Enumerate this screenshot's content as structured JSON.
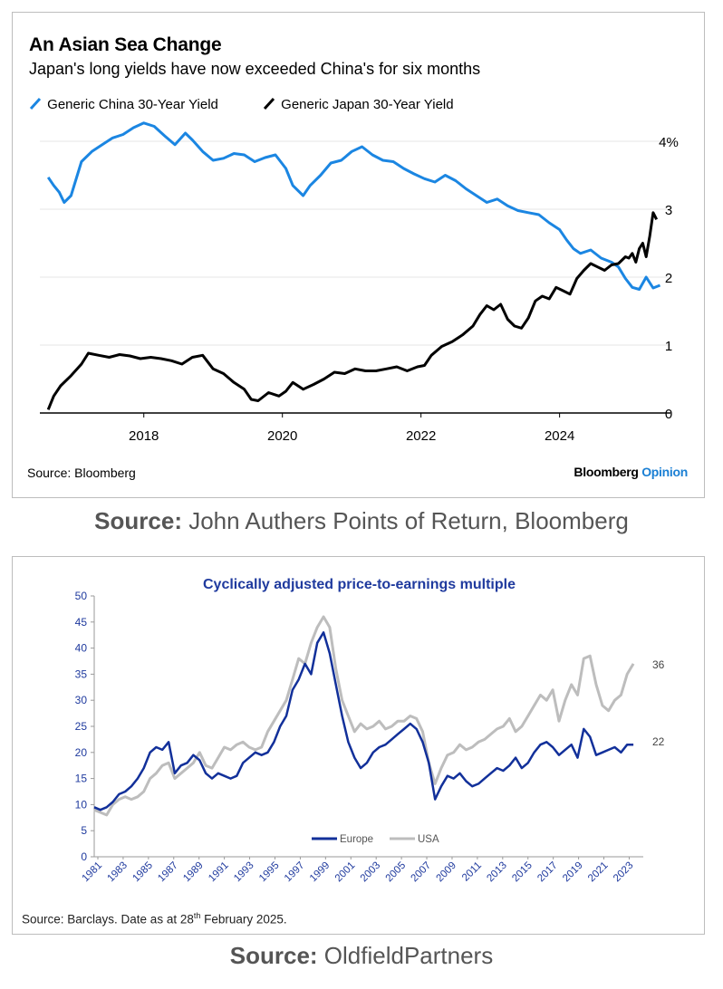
{
  "chart_data": [
    {
      "type": "line",
      "title": "An Asian Sea Change",
      "subtitle": "Japan's long yields have now exceeded China's for six months",
      "xlabel": "",
      "ylabel": "",
      "xlim": [
        2016.5,
        2025.6
      ],
      "ylim": [
        0,
        4
      ],
      "x_ticks": [
        2018,
        2020,
        2022,
        2024
      ],
      "x_tick_labels": [
        "2018",
        "2020",
        "2022",
        "2024"
      ],
      "y_ticks": [
        0,
        1,
        2,
        3,
        4
      ],
      "y_tick_labels": [
        "0",
        "1",
        "2",
        "3",
        "4%"
      ],
      "grid": true,
      "legend_position": "top-left",
      "series": [
        {
          "name": "Generic China 30-Year Yield",
          "color": "#1b86e2",
          "x": [
            2016.62,
            2016.7,
            2016.78,
            2016.85,
            2016.95,
            2017.1,
            2017.25,
            2017.4,
            2017.55,
            2017.7,
            2017.85,
            2018.0,
            2018.15,
            2018.3,
            2018.45,
            2018.6,
            2018.7,
            2018.85,
            2019.0,
            2019.15,
            2019.3,
            2019.45,
            2019.6,
            2019.75,
            2019.9,
            2020.05,
            2020.15,
            2020.3,
            2020.4,
            2020.55,
            2020.7,
            2020.85,
            2021.0,
            2021.15,
            2021.3,
            2021.45,
            2021.6,
            2021.75,
            2021.9,
            2022.05,
            2022.2,
            2022.35,
            2022.5,
            2022.65,
            2022.8,
            2022.95,
            2023.1,
            2023.25,
            2023.4,
            2023.55,
            2023.7,
            2023.85,
            2024.0,
            2024.1,
            2024.2,
            2024.3,
            2024.45,
            2024.6,
            2024.75,
            2024.85,
            2024.95,
            2025.05,
            2025.15,
            2025.25,
            2025.35,
            2025.45
          ],
          "values": [
            3.47,
            3.35,
            3.25,
            3.1,
            3.2,
            3.7,
            3.85,
            3.95,
            4.05,
            4.1,
            4.2,
            4.27,
            4.22,
            4.08,
            3.95,
            4.12,
            4.02,
            3.85,
            3.72,
            3.75,
            3.82,
            3.8,
            3.7,
            3.76,
            3.8,
            3.6,
            3.35,
            3.2,
            3.35,
            3.5,
            3.68,
            3.72,
            3.85,
            3.92,
            3.8,
            3.72,
            3.7,
            3.6,
            3.52,
            3.45,
            3.4,
            3.5,
            3.42,
            3.3,
            3.2,
            3.1,
            3.15,
            3.05,
            2.98,
            2.95,
            2.92,
            2.8,
            2.7,
            2.55,
            2.42,
            2.35,
            2.4,
            2.28,
            2.22,
            2.15,
            1.98,
            1.85,
            1.82,
            2.0,
            1.84,
            1.88
          ]
        },
        {
          "name": "Generic Japan 30-Year Yield",
          "color": "#000000",
          "x": [
            2016.62,
            2016.7,
            2016.8,
            2016.95,
            2017.1,
            2017.2,
            2017.35,
            2017.5,
            2017.65,
            2017.8,
            2017.95,
            2018.1,
            2018.25,
            2018.4,
            2018.55,
            2018.7,
            2018.85,
            2019.0,
            2019.15,
            2019.3,
            2019.45,
            2019.55,
            2019.65,
            2019.8,
            2019.95,
            2020.05,
            2020.15,
            2020.3,
            2020.45,
            2020.6,
            2020.75,
            2020.9,
            2021.05,
            2021.2,
            2021.35,
            2021.5,
            2021.65,
            2021.8,
            2021.95,
            2022.05,
            2022.15,
            2022.3,
            2022.45,
            2022.6,
            2022.75,
            2022.85,
            2022.95,
            2023.05,
            2023.15,
            2023.25,
            2023.35,
            2023.45,
            2023.55,
            2023.65,
            2023.75,
            2023.85,
            2023.95,
            2024.05,
            2024.15,
            2024.25,
            2024.35,
            2024.45,
            2024.55,
            2024.65,
            2024.75,
            2024.85,
            2024.95,
            2025.0,
            2025.05,
            2025.1,
            2025.15,
            2025.2,
            2025.25,
            2025.3,
            2025.35,
            2025.4
          ],
          "values": [
            0.05,
            0.25,
            0.4,
            0.55,
            0.72,
            0.88,
            0.85,
            0.82,
            0.86,
            0.84,
            0.8,
            0.82,
            0.8,
            0.77,
            0.72,
            0.82,
            0.85,
            0.65,
            0.58,
            0.45,
            0.35,
            0.2,
            0.18,
            0.3,
            0.25,
            0.32,
            0.45,
            0.35,
            0.42,
            0.5,
            0.6,
            0.58,
            0.65,
            0.62,
            0.62,
            0.65,
            0.68,
            0.62,
            0.68,
            0.7,
            0.85,
            0.98,
            1.05,
            1.15,
            1.28,
            1.45,
            1.58,
            1.52,
            1.6,
            1.38,
            1.28,
            1.25,
            1.4,
            1.65,
            1.72,
            1.68,
            1.85,
            1.8,
            1.75,
            1.98,
            2.1,
            2.2,
            2.15,
            2.1,
            2.18,
            2.2,
            2.3,
            2.28,
            2.35,
            2.22,
            2.42,
            2.5,
            2.3,
            2.6,
            2.95,
            2.85
          ]
        }
      ],
      "source": "Source: Bloomberg",
      "brand": "Bloomberg",
      "brand_accent": "Opinion"
    },
    {
      "type": "line",
      "title": "Cyclically adjusted price-to-earnings multiple",
      "xlabel": "",
      "ylabel": "",
      "xlim": [
        1981,
        2025.3
      ],
      "ylim": [
        0,
        50
      ],
      "x_tick_labels": [
        "1981",
        "1983",
        "1985",
        "1987",
        "1989",
        "1991",
        "1993",
        "1995",
        "1997",
        "1999",
        "2001",
        "2003",
        "2005",
        "2007",
        "2009",
        "2011",
        "2013",
        "2015",
        "2017",
        "2019",
        "2021",
        "2023"
      ],
      "y_ticks": [
        0,
        5,
        10,
        15,
        20,
        25,
        30,
        35,
        40,
        45,
        50
      ],
      "grid": false,
      "legend_position": "bottom-center",
      "end_labels": [
        "36",
        "22"
      ],
      "series": [
        {
          "name": "Europe",
          "color": "#12309a",
          "x": [
            1981.0,
            1981.5,
            1982.0,
            1982.5,
            1983.0,
            1983.5,
            1984.0,
            1984.5,
            1985.0,
            1985.5,
            1986.0,
            1986.5,
            1987.0,
            1987.5,
            1988.0,
            1988.5,
            1989.0,
            1989.5,
            1990.0,
            1990.5,
            1991.0,
            1991.5,
            1992.0,
            1992.5,
            1993.0,
            1993.5,
            1994.0,
            1994.5,
            1995.0,
            1995.5,
            1996.0,
            1996.5,
            1997.0,
            1997.5,
            1998.0,
            1998.5,
            1999.0,
            1999.5,
            2000.0,
            2000.5,
            2001.0,
            2001.5,
            2002.0,
            2002.5,
            2003.0,
            2003.5,
            2004.0,
            2004.5,
            2005.0,
            2005.5,
            2006.0,
            2006.5,
            2007.0,
            2007.5,
            2008.0,
            2008.5,
            2009.0,
            2009.5,
            2010.0,
            2010.5,
            2011.0,
            2011.5,
            2012.0,
            2012.5,
            2013.0,
            2013.5,
            2014.0,
            2014.5,
            2015.0,
            2015.5,
            2016.0,
            2016.5,
            2017.0,
            2017.5,
            2018.0,
            2018.5,
            2019.0,
            2019.5,
            2020.0,
            2020.5,
            2021.0,
            2021.5,
            2022.0,
            2022.5,
            2023.0,
            2023.5,
            2024.0,
            2024.5
          ],
          "values": [
            9.5,
            9,
            9.5,
            10.5,
            12,
            12.5,
            13.5,
            15,
            17,
            20,
            21,
            20.5,
            22,
            16,
            17.5,
            18,
            19.5,
            18.5,
            16,
            15,
            16,
            15.5,
            15,
            15.5,
            18,
            19,
            20,
            19.5,
            20,
            22,
            25,
            27,
            32,
            34,
            37,
            35,
            41,
            43,
            39,
            33,
            27,
            22,
            19,
            17,
            18,
            20,
            21,
            21.5,
            22.5,
            23.5,
            24.5,
            25.5,
            24.5,
            22,
            18,
            11,
            13.5,
            15.5,
            15,
            16,
            14.5,
            13.5,
            14,
            15,
            16,
            17,
            16.5,
            17.5,
            19,
            17,
            18,
            20,
            21.5,
            22,
            21,
            19.5,
            20.5,
            21.5,
            19,
            24.5,
            23,
            19.5,
            20,
            20.5,
            21,
            20,
            21.5,
            21.5
          ]
        },
        {
          "name": "USA",
          "color": "#bdbdbd",
          "x": [
            1981.0,
            1981.5,
            1982.0,
            1982.5,
            1983.0,
            1983.5,
            1984.0,
            1984.5,
            1985.0,
            1985.5,
            1986.0,
            1986.5,
            1987.0,
            1987.5,
            1988.0,
            1988.5,
            1989.0,
            1989.5,
            1990.0,
            1990.5,
            1991.0,
            1991.5,
            1992.0,
            1992.5,
            1993.0,
            1993.5,
            1994.0,
            1994.5,
            1995.0,
            1995.5,
            1996.0,
            1996.5,
            1997.0,
            1997.5,
            1998.0,
            1998.5,
            1999.0,
            1999.5,
            2000.0,
            2000.5,
            2001.0,
            2001.5,
            2002.0,
            2002.5,
            2003.0,
            2003.5,
            2004.0,
            2004.5,
            2005.0,
            2005.5,
            2006.0,
            2006.5,
            2007.0,
            2007.5,
            2008.0,
            2008.5,
            2009.0,
            2009.5,
            2010.0,
            2010.5,
            2011.0,
            2011.5,
            2012.0,
            2012.5,
            2013.0,
            2013.5,
            2014.0,
            2014.5,
            2015.0,
            2015.5,
            2016.0,
            2016.5,
            2017.0,
            2017.5,
            2018.0,
            2018.5,
            2019.0,
            2019.5,
            2020.0,
            2020.5,
            2021.0,
            2021.5,
            2022.0,
            2022.5,
            2023.0,
            2023.5,
            2024.0,
            2024.5
          ],
          "values": [
            9,
            8.5,
            8,
            10,
            11,
            11.5,
            11,
            11.5,
            12.5,
            15,
            16,
            17.5,
            18,
            15,
            16,
            17,
            18,
            20,
            17.5,
            17,
            19,
            21,
            20.5,
            21.5,
            22,
            21,
            20.5,
            21,
            24,
            26,
            28,
            30,
            34,
            38,
            37,
            41,
            44,
            46,
            44,
            36,
            30,
            27,
            24,
            25.5,
            24.5,
            25,
            26,
            24.5,
            25,
            26,
            26,
            27,
            26.5,
            24,
            18,
            14,
            17,
            19.5,
            20,
            21.5,
            20.5,
            21,
            22,
            22.5,
            23.5,
            24.5,
            25,
            26.5,
            24,
            25,
            27,
            29,
            31,
            30,
            32,
            26,
            30,
            33,
            31,
            38,
            38.5,
            33,
            29,
            28,
            30,
            31,
            35,
            37
          ]
        }
      ],
      "source_prefix": "Source: Barclays. Date as at 28",
      "source_sup": "th",
      "source_suffix": " February 2025."
    }
  ],
  "captions": {
    "first_bold": "Source:",
    "first_rest": " John Authers Points of Return, Bloomberg",
    "second_bold": "Source:",
    "second_rest": " OldfieldPartners"
  }
}
